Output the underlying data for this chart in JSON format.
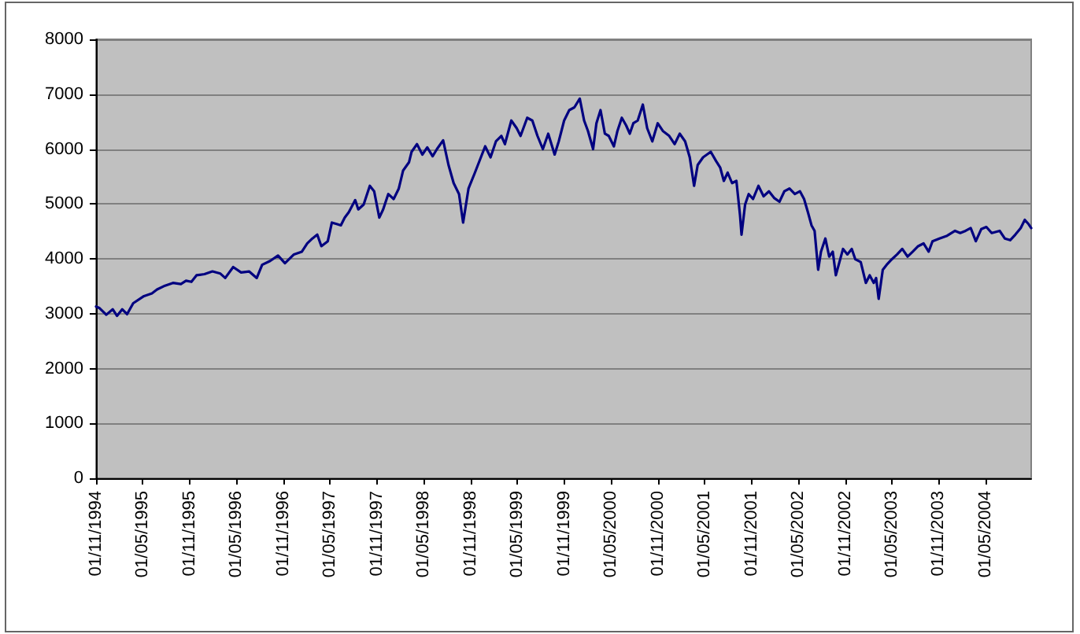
{
  "chart_data": {
    "type": "line",
    "color": "#000080",
    "x": [
      "1994-11-01",
      "1994-11-15",
      "1994-12-11",
      "1995-01-05",
      "1995-01-22",
      "1995-02-11",
      "1995-03-02",
      "1995-03-26",
      "1995-05-07",
      "1995-06-07",
      "1995-06-27",
      "1995-07-28",
      "1995-08-28",
      "1995-09-28",
      "1995-10-18",
      "1995-11-08",
      "1995-11-28",
      "1995-12-29",
      "1996-01-29",
      "1996-02-29",
      "1996-03-19",
      "1996-04-19",
      "1996-05-20",
      "1996-06-20",
      "1996-07-20",
      "1996-08-10",
      "1996-09-10",
      "1996-10-11",
      "1996-11-07",
      "1996-12-12",
      "1997-01-12",
      "1997-02-02",
      "1997-02-22",
      "1997-03-13",
      "1997-03-29",
      "1997-04-23",
      "1997-05-09",
      "1997-05-30",
      "1997-06-13",
      "1997-06-28",
      "1997-07-14",
      "1997-08-08",
      "1997-08-20",
      "1997-09-10",
      "1997-10-04",
      "1997-10-21",
      "1997-11-10",
      "1997-11-25",
      "1997-12-15",
      "1998-01-05",
      "1998-01-25",
      "1998-02-11",
      "1998-03-06",
      "1998-03-16",
      "1998-04-06",
      "1998-04-27",
      "1998-05-16",
      "1998-06-06",
      "1998-06-23",
      "1998-07-17",
      "1998-08-07",
      "1998-08-27",
      "1998-09-17",
      "1998-10-03",
      "1998-10-24",
      "1998-11-18",
      "1998-12-08",
      "1998-12-28",
      "1999-01-18",
      "1999-02-08",
      "1999-03-01",
      "1999-03-15",
      "1999-04-09",
      "1999-04-30",
      "1999-05-15",
      "1999-06-10",
      "1999-06-30",
      "1999-07-20",
      "1999-08-10",
      "1999-08-31",
      "1999-09-25",
      "1999-10-11",
      "1999-11-01",
      "1999-11-21",
      "1999-12-11",
      "2000-01-01",
      "2000-01-18",
      "2000-02-02",
      "2000-02-22",
      "2000-03-06",
      "2000-03-22",
      "2000-04-08",
      "2000-04-23",
      "2000-05-13",
      "2000-05-27",
      "2000-06-13",
      "2000-06-30",
      "2000-07-14",
      "2000-07-28",
      "2000-08-14",
      "2000-09-03",
      "2000-09-20",
      "2000-10-10",
      "2000-10-31",
      "2000-11-20",
      "2000-12-15",
      "2001-01-05",
      "2001-01-25",
      "2001-02-15",
      "2001-03-05",
      "2001-03-22",
      "2001-04-05",
      "2001-04-26",
      "2001-05-26",
      "2001-06-16",
      "2001-07-02",
      "2001-07-16",
      "2001-07-31",
      "2001-08-17",
      "2001-09-03",
      "2001-09-17",
      "2001-09-23",
      "2001-10-07",
      "2001-10-21",
      "2001-11-07",
      "2001-11-28",
      "2001-12-18",
      "2002-01-08",
      "2002-01-28",
      "2002-02-18",
      "2002-03-09",
      "2002-03-29",
      "2002-04-19",
      "2002-05-09",
      "2002-05-25",
      "2002-06-09",
      "2002-06-23",
      "2002-07-05",
      "2002-07-19",
      "2002-07-30",
      "2002-08-16",
      "2002-08-31",
      "2002-09-14",
      "2002-09-26",
      "2002-10-10",
      "2002-10-24",
      "2002-11-10",
      "2002-11-27",
      "2002-12-11",
      "2003-01-01",
      "2003-01-21",
      "2003-02-05",
      "2003-02-21",
      "2003-03-02",
      "2003-03-12",
      "2003-03-28",
      "2003-04-12",
      "2003-05-02",
      "2003-05-23",
      "2003-06-12",
      "2003-07-03",
      "2003-07-23",
      "2003-08-13",
      "2003-09-03",
      "2003-09-23",
      "2003-10-08",
      "2003-11-04",
      "2003-12-04",
      "2004-01-04",
      "2004-01-24",
      "2004-02-14",
      "2004-03-05",
      "2004-03-25",
      "2004-04-15",
      "2004-05-05",
      "2004-05-26",
      "2004-06-26",
      "2004-07-16",
      "2004-08-06",
      "2004-08-26",
      "2004-09-16",
      "2004-10-02",
      "2004-10-17",
      "2004-10-27"
    ],
    "values": [
      3130,
      3100,
      2980,
      3080,
      2960,
      3080,
      2990,
      3190,
      3320,
      3370,
      3440,
      3510,
      3560,
      3540,
      3600,
      3580,
      3700,
      3720,
      3770,
      3730,
      3650,
      3850,
      3750,
      3770,
      3650,
      3890,
      3960,
      4060,
      3920,
      4080,
      4130,
      4280,
      4370,
      4440,
      4230,
      4320,
      4660,
      4630,
      4610,
      4750,
      4850,
      5070,
      4900,
      4990,
      5330,
      5230,
      4750,
      4900,
      5180,
      5090,
      5280,
      5610,
      5760,
      5950,
      6090,
      5900,
      6030,
      5870,
      6000,
      6160,
      5710,
      5380,
      5180,
      4660,
      5280,
      5570,
      5810,
      6050,
      5850,
      6140,
      6240,
      6090,
      6520,
      6380,
      6240,
      6570,
      6520,
      6240,
      6000,
      6280,
      5900,
      6140,
      6520,
      6710,
      6760,
      6920,
      6520,
      6330,
      6000,
      6470,
      6710,
      6280,
      6240,
      6050,
      6330,
      6570,
      6430,
      6280,
      6470,
      6520,
      6810,
      6380,
      6140,
      6470,
      6330,
      6240,
      6090,
      6280,
      6140,
      5850,
      5330,
      5710,
      5850,
      5950,
      5780,
      5660,
      5420,
      5570,
      5380,
      5420,
      4800,
      4440,
      4990,
      5180,
      5090,
      5330,
      5140,
      5230,
      5110,
      5040,
      5230,
      5280,
      5180,
      5230,
      5090,
      4850,
      4610,
      4510,
      3800,
      4130,
      4370,
      4040,
      4130,
      3700,
      3940,
      4180,
      4080,
      4180,
      3990,
      3940,
      3560,
      3700,
      3560,
      3650,
      3270,
      3800,
      3890,
      3990,
      4080,
      4180,
      4040,
      4130,
      4230,
      4280,
      4130,
      4320,
      4370,
      4420,
      4510,
      4470,
      4510,
      4560,
      4320,
      4540,
      4580,
      4470,
      4510,
      4370,
      4340,
      4440,
      4560,
      4710,
      4630,
      4560
    ],
    "xlim": [
      "1994-11-01",
      "2004-10-27"
    ],
    "xticks": [
      {
        "value": "1994-11-01",
        "label": "01/11/1994"
      },
      {
        "value": "1995-05-01",
        "label": "01/05/1995"
      },
      {
        "value": "1995-11-01",
        "label": "01/11/1995"
      },
      {
        "value": "1996-05-01",
        "label": "01/05/1996"
      },
      {
        "value": "1996-11-01",
        "label": "01/11/1996"
      },
      {
        "value": "1997-05-01",
        "label": "01/05/1997"
      },
      {
        "value": "1997-11-01",
        "label": "01/11/1997"
      },
      {
        "value": "1998-05-01",
        "label": "01/05/1998"
      },
      {
        "value": "1998-11-01",
        "label": "01/11/1998"
      },
      {
        "value": "1999-05-01",
        "label": "01/05/1999"
      },
      {
        "value": "1999-11-01",
        "label": "01/11/1999"
      },
      {
        "value": "2000-05-01",
        "label": "01/05/2000"
      },
      {
        "value": "2000-11-01",
        "label": "01/11/2000"
      },
      {
        "value": "2001-05-01",
        "label": "01/05/2001"
      },
      {
        "value": "2001-11-01",
        "label": "01/11/2001"
      },
      {
        "value": "2002-05-01",
        "label": "01/05/2002"
      },
      {
        "value": "2002-11-01",
        "label": "01/11/2002"
      },
      {
        "value": "2003-05-01",
        "label": "01/05/2003"
      },
      {
        "value": "2003-11-01",
        "label": "01/11/2003"
      },
      {
        "value": "2004-05-01",
        "label": "01/05/2004"
      }
    ],
    "ylim": [
      0,
      8000
    ],
    "yticks": [
      0,
      1000,
      2000,
      3000,
      4000,
      5000,
      6000,
      7000,
      8000
    ],
    "grid": "y"
  }
}
